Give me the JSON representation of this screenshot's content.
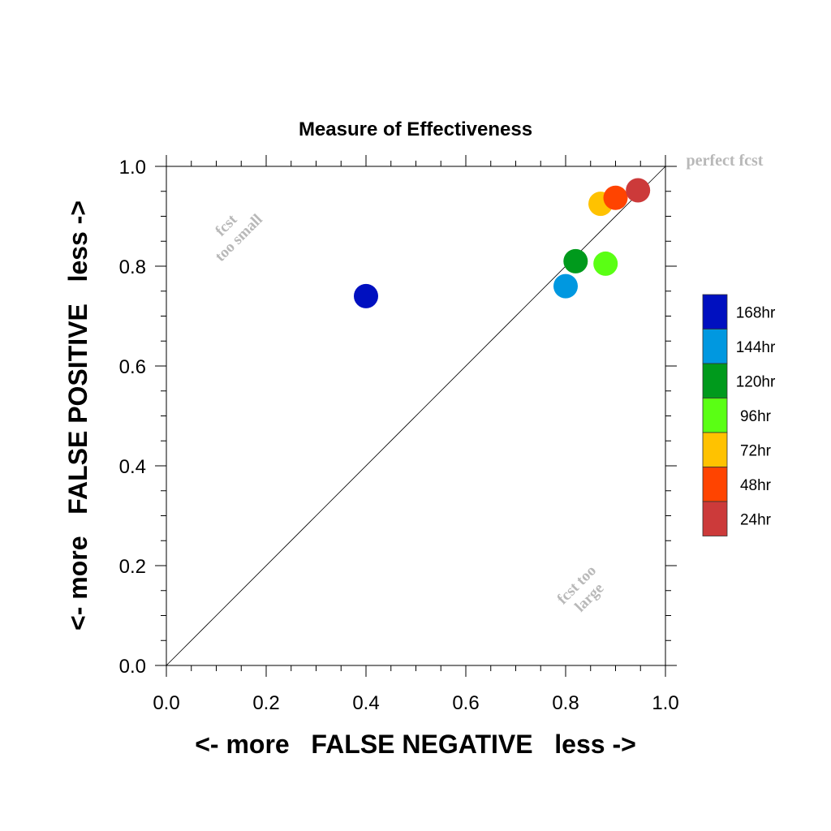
{
  "chart_data": {
    "type": "scatter",
    "title": "Measure of Effectiveness",
    "xlabel": "<- more   FALSE NEGATIVE   less ->",
    "ylabel": "<- more   FALSE POSITIVE   less ->",
    "xlim": [
      0,
      1
    ],
    "ylim": [
      0,
      1
    ],
    "x_ticks": [
      "0.0",
      "0.2",
      "0.4",
      "0.6",
      "0.8",
      "1.0"
    ],
    "y_ticks": [
      "0.0",
      "0.2",
      "0.4",
      "0.6",
      "0.8",
      "1.0"
    ],
    "grid": false,
    "diagonal_reference_line": true,
    "legend_placement": "right",
    "annotations": {
      "perfect": "perfect fcst",
      "too_small_line1": "fcst",
      "too_small_line2": "too small",
      "too_large_line1": "fcst too",
      "too_large_line2": "large"
    },
    "series": [
      {
        "name": "168hr",
        "color": "#0010c0",
        "x": 0.4,
        "y": 0.74
      },
      {
        "name": "144hr",
        "color": "#0098e0",
        "x": 0.8,
        "y": 0.76
      },
      {
        "name": "120hr",
        "color": "#009a1c",
        "x": 0.82,
        "y": 0.81
      },
      {
        "name": "96hr",
        "color": "#5aff14",
        "x": 0.88,
        "y": 0.805
      },
      {
        "name": "72hr",
        "color": "#ffc200",
        "x": 0.87,
        "y": 0.925
      },
      {
        "name": "48hr",
        "color": "#ff4400",
        "x": 0.9,
        "y": 0.937
      },
      {
        "name": "24hr",
        "color": "#cc3a3a",
        "x": 0.945,
        "y": 0.952
      }
    ]
  }
}
